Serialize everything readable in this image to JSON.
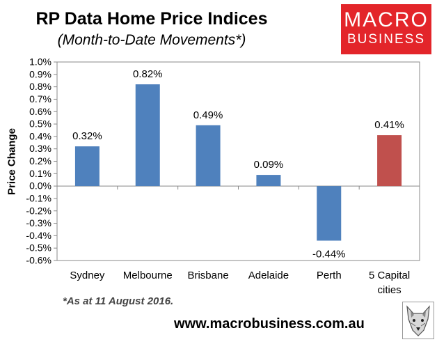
{
  "header": {
    "title": "RP Data Home Price Indices",
    "subtitle": "(Month-to-Date Movements*)"
  },
  "logo": {
    "line1": "MACRO",
    "line2": "BUSINESS",
    "color": "#e3252a"
  },
  "footer": {
    "note": "*As at 11 August 2016.",
    "url": "www.macrobusiness.com.au",
    "mascot_icon": "wolf-icon"
  },
  "colors": {
    "bar_blue": "#4f81bd",
    "bar_red": "#c0504d"
  },
  "chart_data": {
    "type": "bar",
    "title": "RP Data Home Price Indices",
    "subtitle": "(Month-to-Date Movements*)",
    "xlabel": "",
    "ylabel": "Price Change",
    "ylim": [
      -0.6,
      1.0
    ],
    "ytick_step": 0.1,
    "yticks": [
      "1.0%",
      "0.9%",
      "0.8%",
      "0.7%",
      "0.6%",
      "0.5%",
      "0.4%",
      "0.3%",
      "0.2%",
      "0.1%",
      "0.0%",
      "-0.1%",
      "-0.2%",
      "-0.3%",
      "-0.4%",
      "-0.5%",
      "-0.6%"
    ],
    "grid": false,
    "legend": "none",
    "categories": [
      [
        "Sydney"
      ],
      [
        "Melbourne"
      ],
      [
        "Brisbane"
      ],
      [
        "Adelaide"
      ],
      [
        "Perth"
      ],
      [
        "5 Capital",
        "cities"
      ]
    ],
    "values": [
      0.32,
      0.82,
      0.49,
      0.09,
      -0.44,
      0.41
    ],
    "labels": [
      "0.32%",
      "0.82%",
      "0.49%",
      "0.09%",
      "-0.44%",
      "0.41%"
    ],
    "bar_colors": [
      "#4f81bd",
      "#4f81bd",
      "#4f81bd",
      "#4f81bd",
      "#4f81bd",
      "#c0504d"
    ]
  }
}
